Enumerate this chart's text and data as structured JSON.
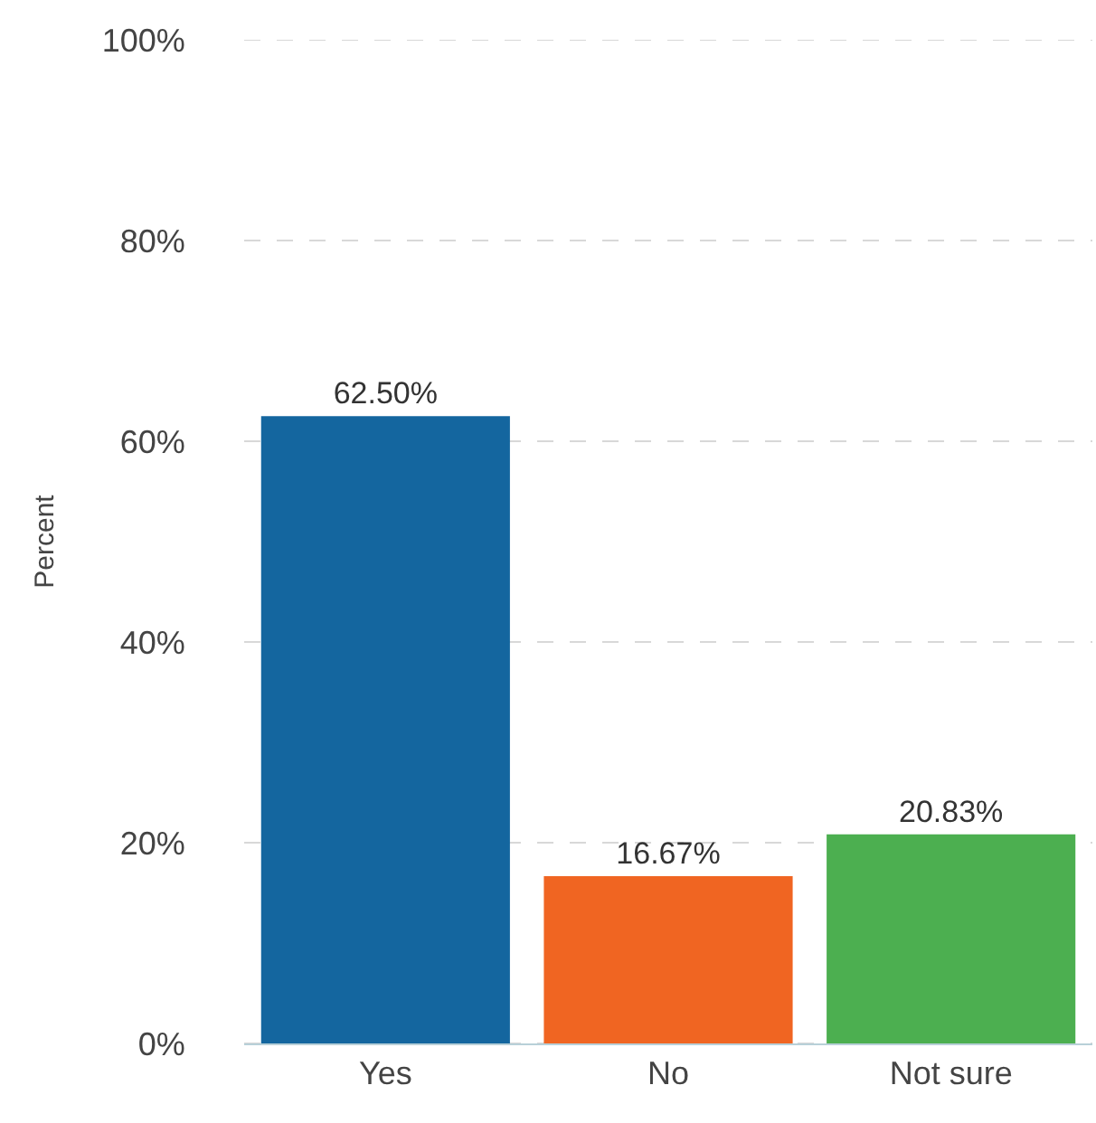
{
  "chart_data": {
    "type": "bar",
    "ylabel": "Percent",
    "categories": [
      "Yes",
      "No",
      "Not sure"
    ],
    "values": [
      62.5,
      16.67,
      20.83
    ],
    "colors": [
      "#14669f",
      "#f06522",
      "#4caf50"
    ],
    "value_labels": [
      "62.50%",
      "16.67%",
      "20.83%"
    ],
    "ylim": [
      0,
      100
    ],
    "yticks": [
      {
        "value": 0,
        "label": "0%"
      },
      {
        "value": 20,
        "label": "20%"
      },
      {
        "value": 40,
        "label": "40%"
      },
      {
        "value": 60,
        "label": "60%"
      },
      {
        "value": 80,
        "label": "80%"
      },
      {
        "value": 100,
        "label": "100%"
      }
    ],
    "grid": "y"
  }
}
